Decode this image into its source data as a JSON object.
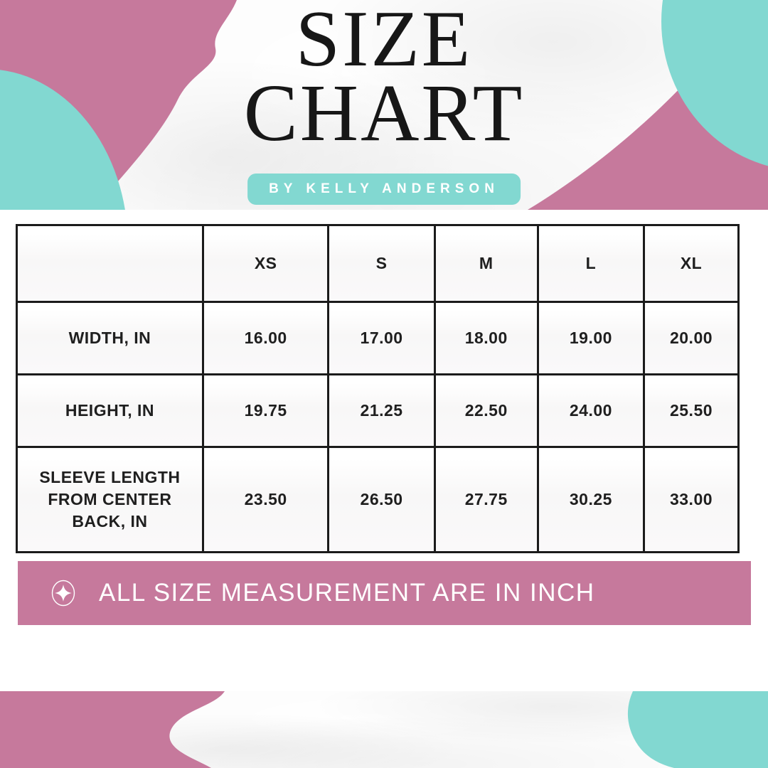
{
  "header": {
    "title_line1": "SIZE",
    "title_line2": "CHART",
    "badge_label": "BY KELLY ANDERSON"
  },
  "chart_data": {
    "type": "table",
    "title": "SIZE CHART",
    "subtitle": "BY KELLY ANDERSON",
    "columns": [
      "",
      "XS",
      "S",
      "M",
      "L",
      "XL"
    ],
    "rows": [
      {
        "label": "WIDTH, IN",
        "values": [
          "16.00",
          "17.00",
          "18.00",
          "19.00",
          "20.00"
        ]
      },
      {
        "label": "HEIGHT, IN",
        "values": [
          "19.75",
          "21.25",
          "22.50",
          "24.00",
          "25.50"
        ]
      },
      {
        "label": "SLEEVE LENGTH FROM CENTER BACK, IN",
        "values": [
          "23.50",
          "26.50",
          "27.75",
          "30.25",
          "33.00"
        ]
      }
    ],
    "units": "inch"
  },
  "note": {
    "icon": "sparkle-icon",
    "text": "ALL SIZE MEASUREMENT ARE IN INCH"
  },
  "colors": {
    "pink": "#c6799c",
    "teal": "#82d8d1",
    "table_border": "#1b1b1b",
    "text_dark": "#1f1f1f",
    "note_text": "#ffffff"
  }
}
